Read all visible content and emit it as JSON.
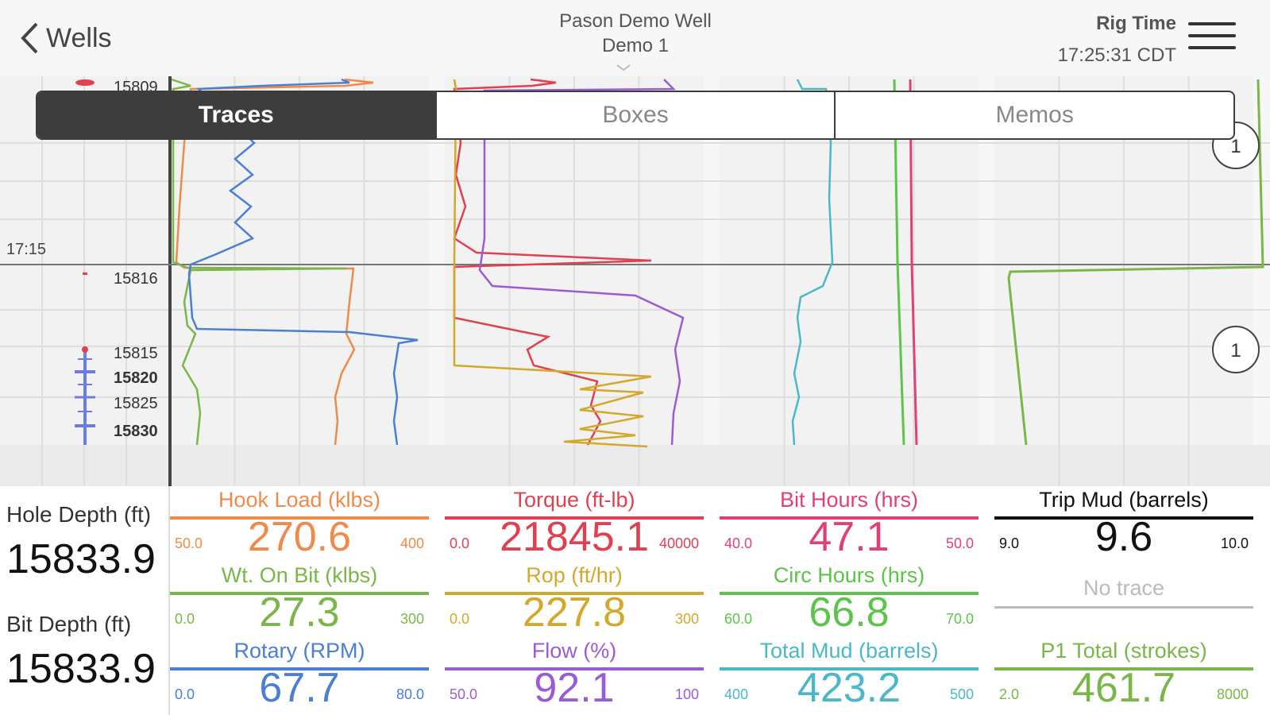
{
  "header": {
    "back_label": "Wells",
    "well_name": "Pason Demo Well",
    "well_sub": "Demo 1",
    "rig_time_label": "Rig Time",
    "rig_time": "17:25:31 CDT"
  },
  "tabs": [
    {
      "label": "Traces",
      "active": true
    },
    {
      "label": "Boxes",
      "active": false
    },
    {
      "label": "Memos",
      "active": false
    }
  ],
  "chart": {
    "time_label": "17:15",
    "depth_labels": [
      "15809",
      "15816",
      "15815",
      "15820",
      "15825",
      "15830"
    ],
    "memo_badges": [
      "1",
      "1"
    ]
  },
  "depth": {
    "hole_label": "Hole Depth (ft)",
    "hole_value": "15833.9",
    "bit_label": "Bit Depth (ft)",
    "bit_value": "15833.9"
  },
  "gauges": [
    [
      {
        "title": "Hook Load (klbs)",
        "value": "270.6",
        "min": "50.0",
        "max": "400",
        "color": "#f08a4b",
        "fill": 0.63
      },
      {
        "title": "Wt. On Bit (klbs)",
        "value": "27.3",
        "min": "0.0",
        "max": "300",
        "color": "#7ab648",
        "fill": 0.09
      },
      {
        "title": "Rotary (RPM)",
        "value": "67.7",
        "min": "0.0",
        "max": "80.0",
        "color": "#4a7fd4",
        "fill": 0.85
      }
    ],
    [
      {
        "title": "Torque (ft-lb)",
        "value": "21845.1",
        "min": "0.0",
        "max": "40000",
        "color": "#e04050",
        "fill": 0.55
      },
      {
        "title": "Rop (ft/hr)",
        "value": "227.8",
        "min": "0.0",
        "max": "300",
        "color": "#d4a82a",
        "fill": 0.76
      },
      {
        "title": "Flow (%)",
        "value": "92.1",
        "min": "50.0",
        "max": "100",
        "color": "#9a5cd4",
        "fill": 0.84
      }
    ],
    [
      {
        "title": "Bit Hours (hrs)",
        "value": "47.1",
        "min": "40.0",
        "max": "50.0",
        "color": "#e0407a",
        "fill": 0.71
      },
      {
        "title": "Circ Hours (hrs)",
        "value": "66.8",
        "min": "60.0",
        "max": "70.0",
        "color": "#5cc44a",
        "fill": 0.68
      },
      {
        "title": "Total Mud (barrels)",
        "value": "423.2",
        "min": "400",
        "max": "500",
        "color": "#4ab8c8",
        "fill": 0.23
      }
    ],
    [
      {
        "title": "Trip Mud (barrels)",
        "value": "9.6",
        "min": "9.0",
        "max": "10.0",
        "color": "#111111",
        "fill": 0.6
      },
      {
        "title": "No trace",
        "value": "",
        "min": "",
        "max": "",
        "color": "#bbbbbb",
        "fill": 0
      },
      {
        "title": "P1 Total (strokes)",
        "value": "461.7",
        "min": "2.0",
        "max": "8000",
        "color": "#7ab648",
        "fill": 0.06
      }
    ]
  ]
}
